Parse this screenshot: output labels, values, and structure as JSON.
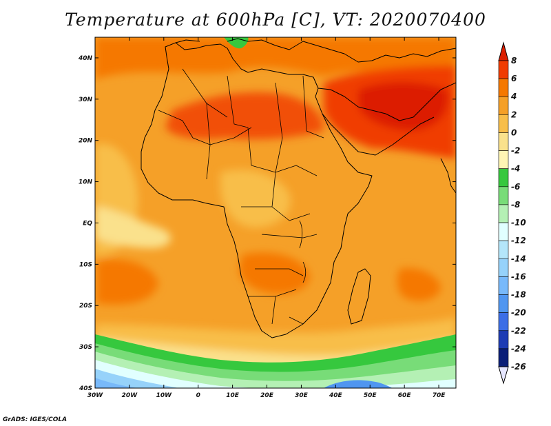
{
  "title": "Temperature at 600hPa [C], VT: 2020070400",
  "footer": "GrADS: IGES/COLA",
  "map": {
    "lon_range": [
      -30,
      75
    ],
    "lat_range": [
      -40,
      45
    ],
    "lon_ticks": [
      {
        "value": -30,
        "label": "30W"
      },
      {
        "value": -20,
        "label": "20W"
      },
      {
        "value": -10,
        "label": "10W"
      },
      {
        "value": 0,
        "label": "0"
      },
      {
        "value": 10,
        "label": "10E"
      },
      {
        "value": 20,
        "label": "20E"
      },
      {
        "value": 30,
        "label": "30E"
      },
      {
        "value": 40,
        "label": "40E"
      },
      {
        "value": 50,
        "label": "50E"
      },
      {
        "value": 60,
        "label": "60E"
      },
      {
        "value": 70,
        "label": "70E"
      }
    ],
    "lat_ticks": [
      {
        "value": 40,
        "label": "40N"
      },
      {
        "value": 30,
        "label": "30N"
      },
      {
        "value": 20,
        "label": "20N"
      },
      {
        "value": 10,
        "label": "10N"
      },
      {
        "value": 0,
        "label": "EQ"
      },
      {
        "value": -10,
        "label": "10S"
      },
      {
        "value": -20,
        "label": "20S"
      },
      {
        "value": -30,
        "label": "30S"
      },
      {
        "value": -40,
        "label": "40S"
      }
    ]
  },
  "colorbar": {
    "levels": [
      "8",
      "6",
      "4",
      "2",
      "0",
      "-2",
      "-4",
      "-6",
      "-8",
      "-10",
      "-12",
      "-14",
      "-16",
      "-18",
      "-20",
      "-22",
      "-24",
      "-26"
    ],
    "colors": [
      "#dc1e00",
      "#f03c00",
      "#f57800",
      "#f5a028",
      "#f8be4a",
      "#fae18c",
      "#fff5b4",
      "#36c83e",
      "#78dc78",
      "#b4f0b4",
      "#e1ffff",
      "#b4e6fa",
      "#96d2fa",
      "#78b9fa",
      "#5096f0",
      "#3c6ee6",
      "#1e3cb4",
      "#0a1e78",
      "#e6e6ff"
    ]
  }
}
